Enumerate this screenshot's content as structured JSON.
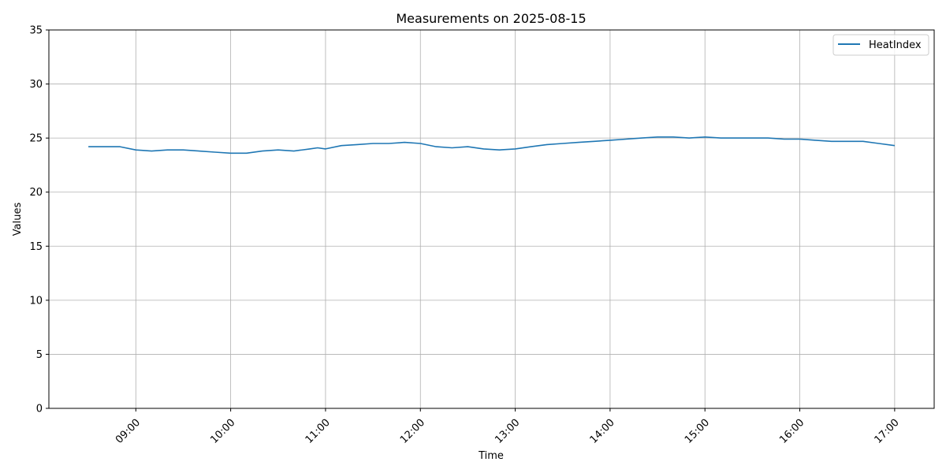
{
  "chart_data": {
    "type": "line",
    "title": "Measurements on 2025-08-15",
    "xlabel": "Time",
    "ylabel": "Values",
    "ylim": [
      0,
      35
    ],
    "yticks": [
      0,
      5,
      10,
      15,
      20,
      25,
      30,
      35
    ],
    "xlim": [
      "08:05",
      "17:25"
    ],
    "xticks": [
      "09:00",
      "10:00",
      "11:00",
      "12:00",
      "13:00",
      "14:00",
      "15:00",
      "16:00",
      "17:00"
    ],
    "grid": true,
    "legend_position": "top-right",
    "series": [
      {
        "name": "HeatIndex",
        "color": "#1f77b4",
        "points": [
          [
            "08:30",
            24.2
          ],
          [
            "08:40",
            24.2
          ],
          [
            "08:50",
            24.2
          ],
          [
            "09:00",
            23.9
          ],
          [
            "09:10",
            23.8
          ],
          [
            "09:20",
            23.9
          ],
          [
            "09:30",
            23.9
          ],
          [
            "09:40",
            23.8
          ],
          [
            "09:50",
            23.7
          ],
          [
            "10:00",
            23.6
          ],
          [
            "10:10",
            23.6
          ],
          [
            "10:20",
            23.8
          ],
          [
            "10:30",
            23.9
          ],
          [
            "10:40",
            23.8
          ],
          [
            "10:50",
            24.0
          ],
          [
            "10:55",
            24.1
          ],
          [
            "11:00",
            24.0
          ],
          [
            "11:10",
            24.3
          ],
          [
            "11:20",
            24.4
          ],
          [
            "11:30",
            24.5
          ],
          [
            "11:40",
            24.5
          ],
          [
            "11:50",
            24.6
          ],
          [
            "12:00",
            24.5
          ],
          [
            "12:10",
            24.2
          ],
          [
            "12:20",
            24.1
          ],
          [
            "12:30",
            24.2
          ],
          [
            "12:40",
            24.0
          ],
          [
            "12:50",
            23.9
          ],
          [
            "13:00",
            24.0
          ],
          [
            "13:10",
            24.2
          ],
          [
            "13:20",
            24.4
          ],
          [
            "13:30",
            24.5
          ],
          [
            "13:40",
            24.6
          ],
          [
            "13:50",
            24.7
          ],
          [
            "14:00",
            24.8
          ],
          [
            "14:10",
            24.9
          ],
          [
            "14:20",
            25.0
          ],
          [
            "14:30",
            25.1
          ],
          [
            "14:40",
            25.1
          ],
          [
            "14:50",
            25.0
          ],
          [
            "15:00",
            25.1
          ],
          [
            "15:10",
            25.0
          ],
          [
            "15:20",
            25.0
          ],
          [
            "15:30",
            25.0
          ],
          [
            "15:40",
            25.0
          ],
          [
            "15:50",
            24.9
          ],
          [
            "16:00",
            24.9
          ],
          [
            "16:10",
            24.8
          ],
          [
            "16:20",
            24.7
          ],
          [
            "16:30",
            24.7
          ],
          [
            "16:40",
            24.7
          ],
          [
            "16:50",
            24.5
          ],
          [
            "17:00",
            24.3
          ]
        ]
      }
    ]
  }
}
